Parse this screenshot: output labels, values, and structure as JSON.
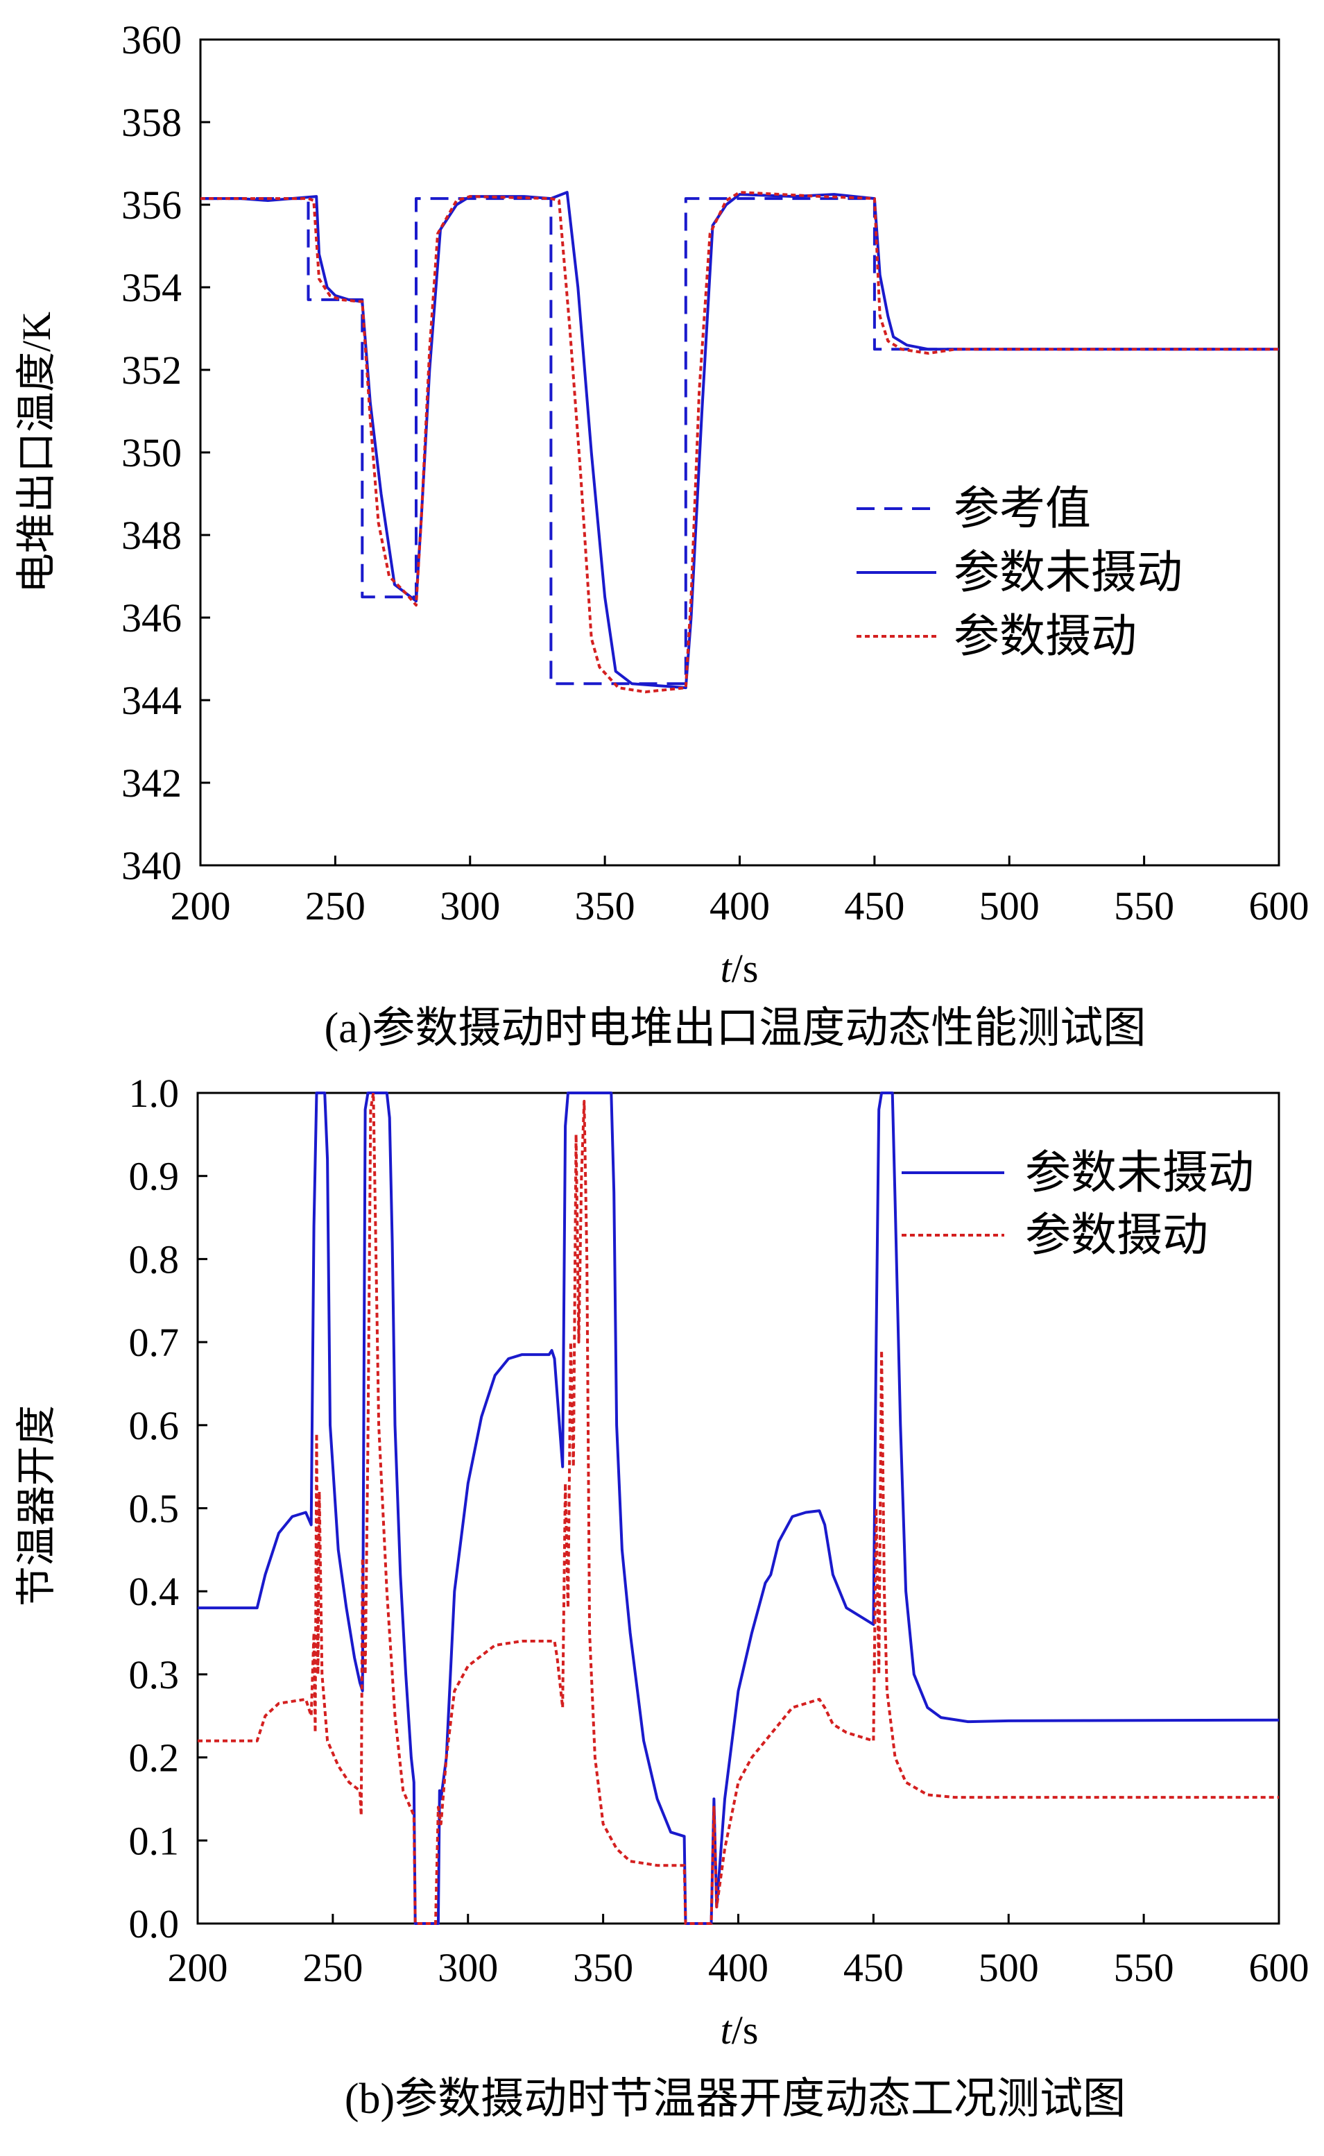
{
  "chart_data": [
    {
      "type": "line",
      "caption": "(a)参数摄动时电堆出口温度动态性能测试图",
      "xlabel_italic": "t",
      "xlabel_unit": "/s",
      "ylabel": "电堆出口温度/K",
      "xlim": [
        200,
        600
      ],
      "ylim": [
        340,
        360
      ],
      "xticks": [
        200,
        250,
        300,
        350,
        400,
        450,
        500,
        550,
        600
      ],
      "yticks": [
        340,
        342,
        344,
        346,
        348,
        350,
        352,
        354,
        356,
        358,
        360
      ],
      "legend_position": "right",
      "series": [
        {
          "name": "参考值",
          "style": "dashed",
          "color": "#1a1acc",
          "points": [
            [
              200,
              356.15
            ],
            [
              240,
              356.15
            ],
            [
              240,
              353.7
            ],
            [
              260,
              353.7
            ],
            [
              260,
              346.5
            ],
            [
              280,
              346.5
            ],
            [
              280,
              356.15
            ],
            [
              330,
              356.15
            ],
            [
              330,
              344.4
            ],
            [
              380,
              344.4
            ],
            [
              380,
              356.15
            ],
            [
              450,
              356.15
            ],
            [
              450,
              352.5
            ],
            [
              600,
              352.5
            ]
          ]
        },
        {
          "name": "参数未摄动",
          "style": "solid",
          "color": "#1a1acc",
          "points": [
            [
              200,
              356.15
            ],
            [
              215,
              356.15
            ],
            [
              225,
              356.1
            ],
            [
              243,
              356.2
            ],
            [
              244,
              354.8
            ],
            [
              247,
              354.0
            ],
            [
              250,
              353.8
            ],
            [
              255,
              353.7
            ],
            [
              260,
              353.65
            ],
            [
              263,
              351.2
            ],
            [
              267,
              349.0
            ],
            [
              272,
              346.8
            ],
            [
              280,
              346.4
            ],
            [
              282,
              348.5
            ],
            [
              285,
              352.0
            ],
            [
              289,
              355.4
            ],
            [
              295,
              356.0
            ],
            [
              300,
              356.2
            ],
            [
              320,
              356.2
            ],
            [
              330,
              356.15
            ],
            [
              336,
              356.3
            ],
            [
              340,
              354.0
            ],
            [
              345,
              350.0
            ],
            [
              350,
              346.5
            ],
            [
              354,
              344.7
            ],
            [
              360,
              344.4
            ],
            [
              380,
              344.3
            ],
            [
              382,
              346.0
            ],
            [
              386,
              351.0
            ],
            [
              390,
              355.5
            ],
            [
              395,
              356.0
            ],
            [
              400,
              356.25
            ],
            [
              420,
              356.2
            ],
            [
              435,
              356.25
            ],
            [
              450,
              356.15
            ],
            [
              452,
              354.3
            ],
            [
              455,
              353.3
            ],
            [
              457,
              352.8
            ],
            [
              462,
              352.6
            ],
            [
              470,
              352.5
            ],
            [
              600,
              352.5
            ]
          ]
        },
        {
          "name": "参数摄动",
          "style": "dotted",
          "color": "#d42020",
          "points": [
            [
              200,
              356.15
            ],
            [
              240,
              356.15
            ],
            [
              242,
              356.1
            ],
            [
              244,
              354.2
            ],
            [
              248,
              353.8
            ],
            [
              252,
              353.7
            ],
            [
              260,
              353.65
            ],
            [
              263,
              350.8
            ],
            [
              266,
              348.3
            ],
            [
              270,
              347.0
            ],
            [
              276,
              346.6
            ],
            [
              280,
              346.3
            ],
            [
              282,
              348.5
            ],
            [
              285,
              352.5
            ],
            [
              288,
              355.3
            ],
            [
              295,
              356.1
            ],
            [
              300,
              356.2
            ],
            [
              330,
              356.15
            ],
            [
              333,
              356.1
            ],
            [
              337,
              353.0
            ],
            [
              341,
              349.5
            ],
            [
              345,
              345.5
            ],
            [
              348,
              344.8
            ],
            [
              355,
              344.3
            ],
            [
              365,
              344.2
            ],
            [
              380,
              344.3
            ],
            [
              382,
              346.5
            ],
            [
              385,
              351.5
            ],
            [
              389,
              355.3
            ],
            [
              395,
              356.1
            ],
            [
              400,
              356.3
            ],
            [
              430,
              356.2
            ],
            [
              450,
              356.15
            ],
            [
              452,
              353.3
            ],
            [
              455,
              352.7
            ],
            [
              460,
              352.5
            ],
            [
              470,
              352.4
            ],
            [
              480,
              352.5
            ],
            [
              600,
              352.5
            ]
          ]
        }
      ]
    },
    {
      "type": "line",
      "caption": "(b)参数摄动时节温器开度动态工况测试图",
      "xlabel_italic": "t",
      "xlabel_unit": "/s",
      "ylabel": "节温器开度",
      "xlim": [
        200,
        600
      ],
      "ylim": [
        0.0,
        1.0
      ],
      "xticks": [
        200,
        250,
        300,
        350,
        400,
        450,
        500,
        550,
        600
      ],
      "yticks": [
        "0.0",
        "0.1",
        "0.2",
        "0.3",
        "0.4",
        "0.5",
        "0.6",
        "0.7",
        "0.8",
        "0.9",
        "1.0"
      ],
      "legend_position": "top-right",
      "series": [
        {
          "name": "参数未摄动",
          "style": "solid",
          "color": "#1a1acc",
          "points": [
            [
              200,
              0.38
            ],
            [
              220,
              0.38
            ],
            [
              222,
              0.38
            ],
            [
              225,
              0.42
            ],
            [
              230,
              0.47
            ],
            [
              235,
              0.49
            ],
            [
              240,
              0.495
            ],
            [
              242,
              0.48
            ],
            [
              243,
              0.84
            ],
            [
              244,
              1.0
            ],
            [
              247,
              1.0
            ],
            [
              248,
              0.92
            ],
            [
              249,
              0.6
            ],
            [
              252,
              0.45
            ],
            [
              255,
              0.38
            ],
            [
              258,
              0.32
            ],
            [
              260,
              0.29
            ],
            [
              261,
              0.28
            ],
            [
              261.5,
              0.65
            ],
            [
              262,
              0.98
            ],
            [
              263,
              1.0
            ],
            [
              270,
              1.0
            ],
            [
              271,
              0.97
            ],
            [
              272,
              0.82
            ],
            [
              273,
              0.6
            ],
            [
              275,
              0.42
            ],
            [
              277,
              0.3
            ],
            [
              279,
              0.2
            ],
            [
              280,
              0.17
            ],
            [
              280.5,
              0.0
            ],
            [
              289,
              0.0
            ],
            [
              289.5,
              0.16
            ],
            [
              290,
              0.15
            ],
            [
              292,
              0.2
            ],
            [
              295,
              0.4
            ],
            [
              300,
              0.53
            ],
            [
              305,
              0.61
            ],
            [
              310,
              0.66
            ],
            [
              315,
              0.68
            ],
            [
              320,
              0.685
            ],
            [
              330,
              0.685
            ],
            [
              331,
              0.69
            ],
            [
              332,
              0.68
            ],
            [
              335,
              0.55
            ],
            [
              336,
              0.96
            ],
            [
              337,
              1.0
            ],
            [
              353,
              1.0
            ],
            [
              354,
              0.88
            ],
            [
              355,
              0.6
            ],
            [
              357,
              0.45
            ],
            [
              360,
              0.35
            ],
            [
              365,
              0.22
            ],
            [
              370,
              0.15
            ],
            [
              375,
              0.11
            ],
            [
              380,
              0.105
            ],
            [
              380.5,
              0.0
            ],
            [
              390,
              0.0
            ],
            [
              391,
              0.15
            ],
            [
              392,
              0.02
            ],
            [
              395,
              0.15
            ],
            [
              400,
              0.28
            ],
            [
              405,
              0.35
            ],
            [
              410,
              0.41
            ],
            [
              412,
              0.42
            ],
            [
              415,
              0.46
            ],
            [
              420,
              0.49
            ],
            [
              425,
              0.495
            ],
            [
              430,
              0.497
            ],
            [
              432,
              0.48
            ],
            [
              435,
              0.42
            ],
            [
              440,
              0.38
            ],
            [
              445,
              0.37
            ],
            [
              450,
              0.36
            ],
            [
              451,
              0.7
            ],
            [
              452,
              0.98
            ],
            [
              453,
              1.0
            ],
            [
              457,
              1.0
            ],
            [
              458,
              0.87
            ],
            [
              460,
              0.6
            ],
            [
              462,
              0.4
            ],
            [
              465,
              0.3
            ],
            [
              470,
              0.26
            ],
            [
              475,
              0.248
            ],
            [
              485,
              0.243
            ],
            [
              500,
              0.244
            ],
            [
              600,
              0.245
            ]
          ]
        },
        {
          "name": "参数摄动",
          "style": "dotted",
          "color": "#d42020",
          "points": [
            [
              200,
              0.22
            ],
            [
              220,
              0.22
            ],
            [
              222,
              0.22
            ],
            [
              225,
              0.25
            ],
            [
              230,
              0.265
            ],
            [
              240,
              0.27
            ],
            [
              242,
              0.25
            ],
            [
              243,
              0.35
            ],
            [
              243.5,
              0.23
            ],
            [
              244,
              0.59
            ],
            [
              244.5,
              0.3
            ],
            [
              245,
              0.52
            ],
            [
              246,
              0.3
            ],
            [
              248,
              0.22
            ],
            [
              252,
              0.19
            ],
            [
              256,
              0.17
            ],
            [
              260,
              0.16
            ],
            [
              260.5,
              0.13
            ],
            [
              261,
              0.44
            ],
            [
              262,
              0.3
            ],
            [
              263,
              0.58
            ],
            [
              264,
              0.98
            ],
            [
              265,
              1.0
            ],
            [
              266,
              0.8
            ],
            [
              267,
              0.6
            ],
            [
              270,
              0.4
            ],
            [
              273,
              0.25
            ],
            [
              276,
              0.16
            ],
            [
              280,
              0.13
            ],
            [
              280.5,
              0.0
            ],
            [
              288,
              0.0
            ],
            [
              289,
              0.14
            ],
            [
              290,
              0.12
            ],
            [
              292,
              0.2
            ],
            [
              295,
              0.28
            ],
            [
              300,
              0.31
            ],
            [
              310,
              0.335
            ],
            [
              320,
              0.34
            ],
            [
              332,
              0.34
            ],
            [
              333,
              0.32
            ],
            [
              335,
              0.26
            ],
            [
              336,
              0.53
            ],
            [
              337,
              0.38
            ],
            [
              338,
              0.7
            ],
            [
              339,
              0.55
            ],
            [
              340,
              0.95
            ],
            [
              341,
              0.7
            ],
            [
              342,
              0.9
            ],
            [
              343,
              0.99
            ],
            [
              344,
              0.8
            ],
            [
              345,
              0.35
            ],
            [
              347,
              0.2
            ],
            [
              350,
              0.12
            ],
            [
              355,
              0.09
            ],
            [
              360,
              0.075
            ],
            [
              370,
              0.07
            ],
            [
              380,
              0.07
            ],
            [
              380.5,
              0.0
            ],
            [
              390,
              0.0
            ],
            [
              391,
              0.14
            ],
            [
              392,
              0.02
            ],
            [
              395,
              0.09
            ],
            [
              400,
              0.17
            ],
            [
              405,
              0.2
            ],
            [
              410,
              0.22
            ],
            [
              415,
              0.24
            ],
            [
              420,
              0.26
            ],
            [
              430,
              0.27
            ],
            [
              432,
              0.26
            ],
            [
              435,
              0.24
            ],
            [
              440,
              0.23
            ],
            [
              450,
              0.22
            ],
            [
              451,
              0.5
            ],
            [
              452,
              0.3
            ],
            [
              453,
              0.69
            ],
            [
              454,
              0.4
            ],
            [
              455,
              0.28
            ],
            [
              458,
              0.2
            ],
            [
              462,
              0.17
            ],
            [
              470,
              0.155
            ],
            [
              480,
              0.152
            ],
            [
              600,
              0.152
            ]
          ]
        }
      ]
    }
  ]
}
